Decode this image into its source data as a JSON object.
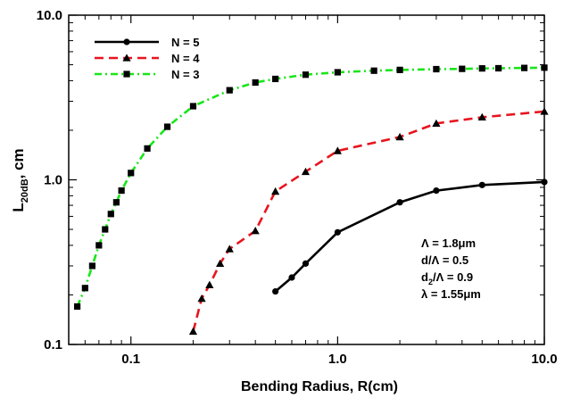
{
  "chart_data": {
    "type": "line",
    "x_scale": "log",
    "y_scale": "log",
    "xlim": [
      0.05,
      10.0
    ],
    "ylim": [
      0.1,
      10.0
    ],
    "xlabel": "Bending Radius, R(cm)",
    "ylabel": {
      "main": "L",
      "sub": "20dB",
      "tail": ", cm"
    },
    "x_ticks": [
      {
        "value": 0.1,
        "label": "0.1"
      },
      {
        "value": 1.0,
        "label": "1.0"
      },
      {
        "value": 10.0,
        "label": "10.0"
      }
    ],
    "y_ticks": [
      {
        "value": 0.1,
        "label": "0.1"
      },
      {
        "value": 1.0,
        "label": "1.0"
      },
      {
        "value": 10.0,
        "label": "10.0"
      }
    ],
    "legend_position": "top-left",
    "grid": false,
    "series": [
      {
        "name": "N = 5",
        "color": "#000000",
        "line": "solid",
        "marker": "circle",
        "x": [
          0.5,
          0.6,
          0.7,
          1.0,
          2.0,
          3.0,
          5.0,
          10.0
        ],
        "y": [
          0.21,
          0.255,
          0.31,
          0.48,
          0.73,
          0.86,
          0.93,
          0.97
        ]
      },
      {
        "name": "N = 4",
        "color": "#e8141e",
        "line": "dashed",
        "marker": "triangle",
        "x": [
          0.2,
          0.22,
          0.24,
          0.27,
          0.3,
          0.4,
          0.5,
          0.7,
          1.0,
          2.0,
          3.0,
          5.0,
          10.0
        ],
        "y": [
          0.12,
          0.19,
          0.23,
          0.31,
          0.38,
          0.49,
          0.85,
          1.12,
          1.5,
          1.82,
          2.2,
          2.4,
          2.6
        ]
      },
      {
        "name": "N = 3",
        "color": "#19e619",
        "line": "dashdot",
        "marker": "square",
        "x": [
          0.055,
          0.06,
          0.065,
          0.07,
          0.075,
          0.08,
          0.085,
          0.09,
          0.1,
          0.12,
          0.15,
          0.2,
          0.3,
          0.4,
          0.5,
          0.7,
          1.0,
          1.5,
          2.0,
          3.0,
          4.0,
          5.0,
          6.0,
          8.0,
          10.0
        ],
        "y": [
          0.17,
          0.22,
          0.3,
          0.4,
          0.5,
          0.62,
          0.73,
          0.86,
          1.1,
          1.55,
          2.1,
          2.8,
          3.5,
          3.9,
          4.1,
          4.35,
          4.5,
          4.6,
          4.65,
          4.7,
          4.72,
          4.75,
          4.76,
          4.78,
          4.8
        ]
      }
    ],
    "annotations": [
      {
        "lines": [
          "Λ = 1.8μm",
          "d/Λ = 0.5",
          "d₂/Λ = 0.9",
          "λ = 1.55μm"
        ]
      }
    ]
  }
}
